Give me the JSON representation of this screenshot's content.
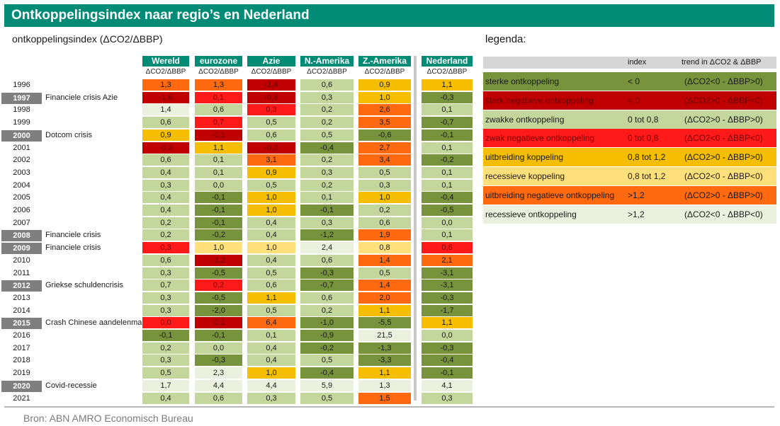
{
  "title": "Ontkoppelingsindex naar regio’s en Nederland",
  "subtitle": "ontkoppelingsindex (ΔCO2/ΔBBP)",
  "source": "Bron: ABN AMRO Economisch Bureau",
  "colors": {
    "header": "#008b76",
    "sterk_ontkoppeling": "#77933c",
    "sterk_negatief": "#c00000",
    "zwak_ontkoppeling": "#c3d69b",
    "zwak_negatief": "#ff1a1a",
    "uitbreiding_koppeling": "#f5be00",
    "recessief_koppeling": "#ffe07a",
    "uitbreiding_negatief": "#ff6a10",
    "recessief_ontkoppeling": "#ebf1de"
  },
  "chart_data": {
    "type": "table",
    "title": "Ontkoppelingsindex naar regio’s en Nederland",
    "metric": "ΔCO2/ΔBBP",
    "columns": [
      {
        "name": "Wereld",
        "unit": "ΔCO2/ΔBBP"
      },
      {
        "name": "eurozone",
        "unit": "ΔCO2/ΔBBP"
      },
      {
        "name": "Azie",
        "unit": "ΔCO2/ΔBBP"
      },
      {
        "name": "N.-Amerika",
        "unit": "ΔCO2/ΔBBP"
      },
      {
        "name": "Z.-Amerika",
        "unit": "ΔCO2/ΔBBP"
      },
      {
        "name": "Nederland",
        "unit": "ΔCO2/ΔBBP"
      }
    ],
    "rows": [
      {
        "year": "1996",
        "event": "",
        "highlight": false,
        "values": [
          "1,3",
          "1,3",
          "-1,4",
          "0,6",
          "0,9",
          "1,1"
        ],
        "classes": [
          "un",
          "un",
          "sn",
          "zo",
          "uk",
          "uk"
        ]
      },
      {
        "year": "1997",
        "event": "Financiele crisis Azie",
        "highlight": true,
        "values": [
          "-1,6",
          "0,1",
          "-0,8",
          "0,3",
          "1,0",
          "-0,3"
        ],
        "classes": [
          "sn",
          "zn",
          "sn",
          "zo",
          "uk",
          "so"
        ]
      },
      {
        "year": "1998",
        "event": "",
        "highlight": false,
        "values": [
          "1,4",
          "0,6",
          "0,3",
          "0,2",
          "2,6",
          "0,1"
        ],
        "classes": [
          "ro",
          "zo",
          "zn",
          "zo",
          "un",
          "zo"
        ]
      },
      {
        "year": "1999",
        "event": "",
        "highlight": false,
        "values": [
          "0,6",
          "0,7",
          "0,5",
          "0,2",
          "3,5",
          "-0,7"
        ],
        "classes": [
          "zo",
          "zn",
          "zo",
          "zo",
          "un",
          "so"
        ]
      },
      {
        "year": "2000",
        "event": "Dotcom crisis",
        "highlight": true,
        "values": [
          "0,9",
          "-0,1",
          "0,6",
          "0,5",
          "-0,6",
          "-0,1"
        ],
        "classes": [
          "uk",
          "sn",
          "zo",
          "zo",
          "so",
          "so"
        ]
      },
      {
        "year": "2001",
        "event": "",
        "highlight": false,
        "values": [
          "-0,3",
          "1,1",
          "-0,3",
          "-0,4",
          "2,7",
          "0,1"
        ],
        "classes": [
          "sn",
          "uk",
          "sn",
          "so",
          "un",
          "zo"
        ]
      },
      {
        "year": "2002",
        "event": "",
        "highlight": false,
        "values": [
          "0,6",
          "0,1",
          "3,1",
          "0,2",
          "3,4",
          "-0,2"
        ],
        "classes": [
          "zo",
          "zo",
          "un",
          "zo",
          "un",
          "so"
        ]
      },
      {
        "year": "2003",
        "event": "",
        "highlight": false,
        "values": [
          "0,4",
          "0,1",
          "0,9",
          "0,3",
          "0,5",
          "0,1"
        ],
        "classes": [
          "zo",
          "zo",
          "uk",
          "zo",
          "zo",
          "zo"
        ]
      },
      {
        "year": "2004",
        "event": "",
        "highlight": false,
        "values": [
          "0,3",
          "0,0",
          "0,5",
          "0,2",
          "0,3",
          "0,1"
        ],
        "classes": [
          "zo",
          "zo",
          "zo",
          "zo",
          "zo",
          "zo"
        ]
      },
      {
        "year": "2005",
        "event": "",
        "highlight": false,
        "values": [
          "0,4",
          "-0,1",
          "1,0",
          "0,1",
          "1,0",
          "-0,4"
        ],
        "classes": [
          "zo",
          "so",
          "uk",
          "zo",
          "uk",
          "so"
        ]
      },
      {
        "year": "2006",
        "event": "",
        "highlight": false,
        "values": [
          "0,4",
          "-0,1",
          "1,0",
          "-0,1",
          "0,2",
          "-0,5"
        ],
        "classes": [
          "zo",
          "so",
          "uk",
          "so",
          "zo",
          "so"
        ]
      },
      {
        "year": "2007",
        "event": "",
        "highlight": false,
        "values": [
          "0,2",
          "-0,1",
          "0,4",
          "0,3",
          "0,6",
          "0,0"
        ],
        "classes": [
          "zo",
          "so",
          "zo",
          "zo",
          "zo",
          "zo"
        ]
      },
      {
        "year": "2008",
        "event": "Financiele crisis",
        "highlight": true,
        "values": [
          "0,2",
          "-0,2",
          "0,4",
          "-1,2",
          "1,9",
          "0,1"
        ],
        "classes": [
          "zo",
          "so",
          "zo",
          "so",
          "un",
          "zo"
        ]
      },
      {
        "year": "2009",
        "event": "Financiele crisis",
        "highlight": true,
        "values": [
          "0,3",
          "1,0",
          "1,0",
          "2,4",
          "0,8",
          "0,6"
        ],
        "classes": [
          "zn",
          "rk",
          "rk",
          "ro",
          "rk",
          "zn"
        ]
      },
      {
        "year": "2010",
        "event": "",
        "highlight": false,
        "values": [
          "0,6",
          "-1,2",
          "0,4",
          "0,6",
          "1,4",
          "2,1"
        ],
        "classes": [
          "zo",
          "sn",
          "zo",
          "zo",
          "un",
          "un"
        ]
      },
      {
        "year": "2011",
        "event": "",
        "highlight": false,
        "values": [
          "0,3",
          "-0,5",
          "0,5",
          "-0,3",
          "0,5",
          "-3,1"
        ],
        "classes": [
          "zo",
          "so",
          "zo",
          "so",
          "zo",
          "so"
        ]
      },
      {
        "year": "2012",
        "event": "Griekse schuldencrisis",
        "highlight": true,
        "values": [
          "0,7",
          "0,2",
          "0,6",
          "-0,7",
          "1,4",
          "-3,1"
        ],
        "classes": [
          "zo",
          "zn",
          "zo",
          "so",
          "un",
          "so"
        ]
      },
      {
        "year": "2013",
        "event": "",
        "highlight": false,
        "values": [
          "0,3",
          "-0,5",
          "1,1",
          "0,6",
          "2,0",
          "-0,3"
        ],
        "classes": [
          "zo",
          "so",
          "uk",
          "zo",
          "un",
          "so"
        ]
      },
      {
        "year": "2014",
        "event": "",
        "highlight": false,
        "values": [
          "0,3",
          "-2,0",
          "0,5",
          "0,2",
          "1,1",
          "-1,7"
        ],
        "classes": [
          "zo",
          "so",
          "zo",
          "zo",
          "uk",
          "so"
        ]
      },
      {
        "year": "2015",
        "event": "Crash Chinese aandelenmarkt",
        "highlight": true,
        "values": [
          "0,0",
          "-0,1",
          "6,4",
          "-1,0",
          "-5,5",
          "1,1"
        ],
        "classes": [
          "zn",
          "sn",
          "un",
          "so",
          "so",
          "uk"
        ]
      },
      {
        "year": "2016",
        "event": "",
        "highlight": false,
        "values": [
          "-0,1",
          "-0,1",
          "0,1",
          "-0,9",
          "21,5",
          "0,0"
        ],
        "classes": [
          "so",
          "so",
          "zo",
          "so",
          "ro",
          "zo"
        ]
      },
      {
        "year": "2017",
        "event": "",
        "highlight": false,
        "values": [
          "0,2",
          "0,0",
          "0,4",
          "-0,2",
          "-1,3",
          "-0,3"
        ],
        "classes": [
          "zo",
          "zo",
          "zo",
          "so",
          "so",
          "so"
        ]
      },
      {
        "year": "2018",
        "event": "",
        "highlight": false,
        "values": [
          "0,3",
          "-0,3",
          "0,4",
          "0,5",
          "-3,3",
          "-0,4"
        ],
        "classes": [
          "zo",
          "so",
          "zo",
          "zo",
          "so",
          "so"
        ]
      },
      {
        "year": "2019",
        "event": "",
        "highlight": false,
        "values": [
          "0,5",
          "2,3",
          "1,0",
          "-0,4",
          "1,1",
          "-0,1"
        ],
        "classes": [
          "zo",
          "ro",
          "uk",
          "so",
          "uk",
          "so"
        ]
      },
      {
        "year": "2020",
        "event": "Covid-recessie",
        "highlight": true,
        "values": [
          "1,7",
          "4,4",
          "4,4",
          "5,9",
          "1,3",
          "4,1"
        ],
        "classes": [
          "ro",
          "ro",
          "ro",
          "ro",
          "ro",
          "ro"
        ]
      },
      {
        "year": "2021",
        "event": "",
        "highlight": false,
        "values": [
          "0,4",
          "0,6",
          "0,3",
          "0,5",
          "1,5",
          "0,3"
        ],
        "classes": [
          "zo",
          "zo",
          "zo",
          "zo",
          "un",
          "zo"
        ]
      }
    ]
  },
  "legend": {
    "title": "legenda:",
    "col_index": "index",
    "col_trend": "trend in ΔCO2 & ΔBBP",
    "items": [
      {
        "label": "sterke ontkoppeling",
        "index": "< 0",
        "trend": "(ΔCO2<0 - ΔBBP>0)",
        "cls": "so"
      },
      {
        "label": "sterk negatieve ontkoppeling",
        "index": "< 0",
        "trend": "(ΔCO2>0 - ΔBBP<0)",
        "cls": "sn"
      },
      {
        "label": "zwakke ontkoppeling",
        "index": "0 tot 0,8",
        "trend": "(ΔCO2>0 - ΔBBP>0)",
        "cls": "zo"
      },
      {
        "label": "zwak negatieve ontkoppeling",
        "index": "0 tot 0,8",
        "trend": "(ΔCO2<0 - ΔBBP<0)",
        "cls": "zn"
      },
      {
        "label": "uitbreiding koppeling",
        "index": "0,8 tot 1,2",
        "trend": "(ΔCO2>0 - ΔBBP>0)",
        "cls": "uk"
      },
      {
        "label": "recessieve koppeling",
        "index": "0,8 tot 1,2",
        "trend": "(ΔCO2<0 - ΔBBP<0)",
        "cls": "rk"
      },
      {
        "label": "uitbreiding negatieve ontkoppeling",
        "index": ">1,2",
        "trend": "(ΔCO2>0 - ΔBBP>0)",
        "cls": "un"
      },
      {
        "label": "recessieve ontkoppeling",
        "index": ">1,2",
        "trend": "(ΔCO2<0 - ΔBBP<0)",
        "cls": "ro"
      }
    ]
  }
}
